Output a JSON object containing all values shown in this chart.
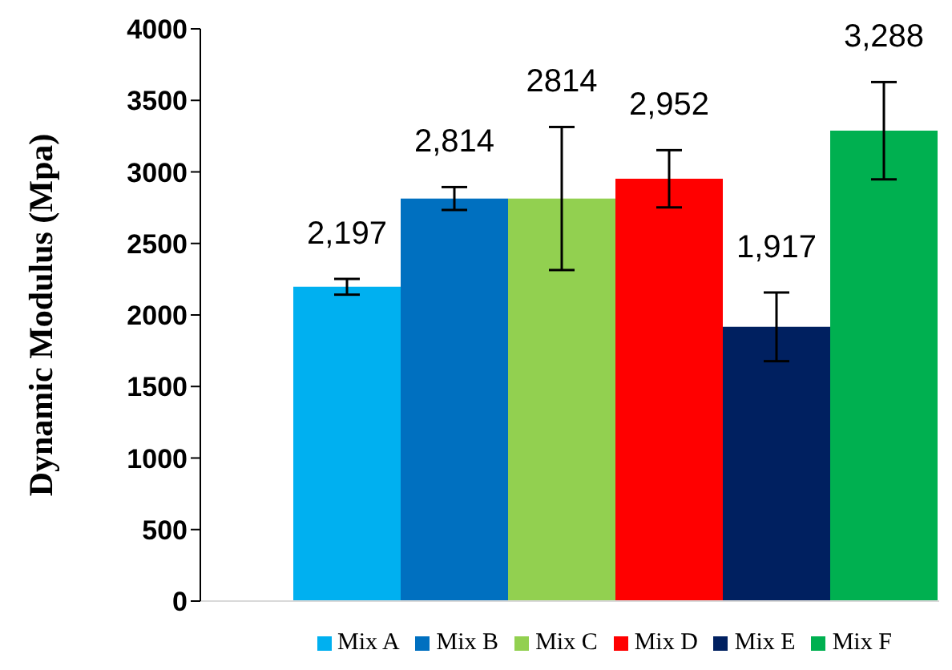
{
  "chart_data": {
    "type": "bar",
    "ylabel": "Dynamic Modulus (Mpa)",
    "categories": [
      null
    ],
    "series": [
      {
        "name": "Mix A",
        "color": "#00b0f0",
        "values": [
          2197
        ],
        "errors": [
          55
        ],
        "value_labels": [
          "2,197"
        ]
      },
      {
        "name": "Mix B",
        "color": "#0070c0",
        "values": [
          2814
        ],
        "errors": [
          80
        ],
        "value_labels": [
          "2,814"
        ]
      },
      {
        "name": "Mix C",
        "color": "#92d050",
        "values": [
          2814
        ],
        "errors": [
          500
        ],
        "value_labels": [
          "2814"
        ]
      },
      {
        "name": "Mix D",
        "color": "#ff0000",
        "values": [
          2952
        ],
        "errors": [
          200
        ],
        "value_labels": [
          "2,952"
        ]
      },
      {
        "name": "Mix E",
        "color": "#002060",
        "values": [
          1917
        ],
        "errors": [
          240
        ],
        "value_labels": [
          "1,917"
        ]
      },
      {
        "name": "Mix F",
        "color": "#00b050",
        "values": [
          3288
        ],
        "errors": [
          340
        ],
        "value_labels": [
          "3,288"
        ]
      }
    ],
    "ylim": [
      0,
      4000
    ],
    "yticks": [
      0,
      500,
      1000,
      1500,
      2000,
      2500,
      3000,
      3500,
      4000
    ],
    "grid": false,
    "legend": "bottom"
  }
}
